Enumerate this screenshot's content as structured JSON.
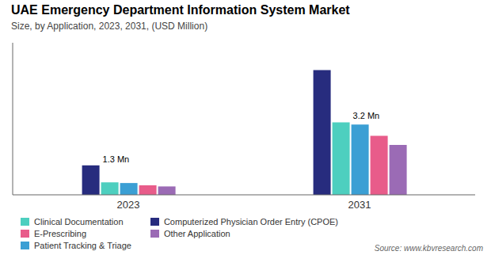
{
  "chart_data": {
    "type": "bar",
    "title": "UAE Emergency Department Information System Market",
    "subtitle": "Size, by Application, 2023, 2031, (USD Million)",
    "source": "Source: www.kbvresearch.com",
    "categories": [
      "2023",
      "2031"
    ],
    "series": [
      {
        "name": "Computerized Physician Order Entry (CPOE)",
        "color": "#272c7e",
        "values": [
          1.3,
          5.5
        ]
      },
      {
        "name": "Clinical Documentation",
        "color": "#4dcfbf",
        "values": [
          0.55,
          3.2
        ]
      },
      {
        "name": "Patient Tracking & Triage",
        "color": "#3b9fd4",
        "values": [
          0.52,
          3.1
        ]
      },
      {
        "name": "E-Prescribing",
        "color": "#e85c8a",
        "values": [
          0.42,
          2.6
        ]
      },
      {
        "name": "Other Application",
        "color": "#9b6bb5",
        "values": [
          0.37,
          2.2
        ]
      }
    ],
    "ylim": [
      0,
      6.71
    ],
    "tick_labels": "x",
    "grid": false,
    "legend": "lower left",
    "annotations": [
      {
        "text": "1.3 Mn",
        "category": "2023",
        "series": "Computerized Physician Order Entry (CPOE)"
      },
      {
        "text": "3.2 Mn",
        "category": "2031",
        "series": "Clinical Documentation"
      }
    ]
  }
}
